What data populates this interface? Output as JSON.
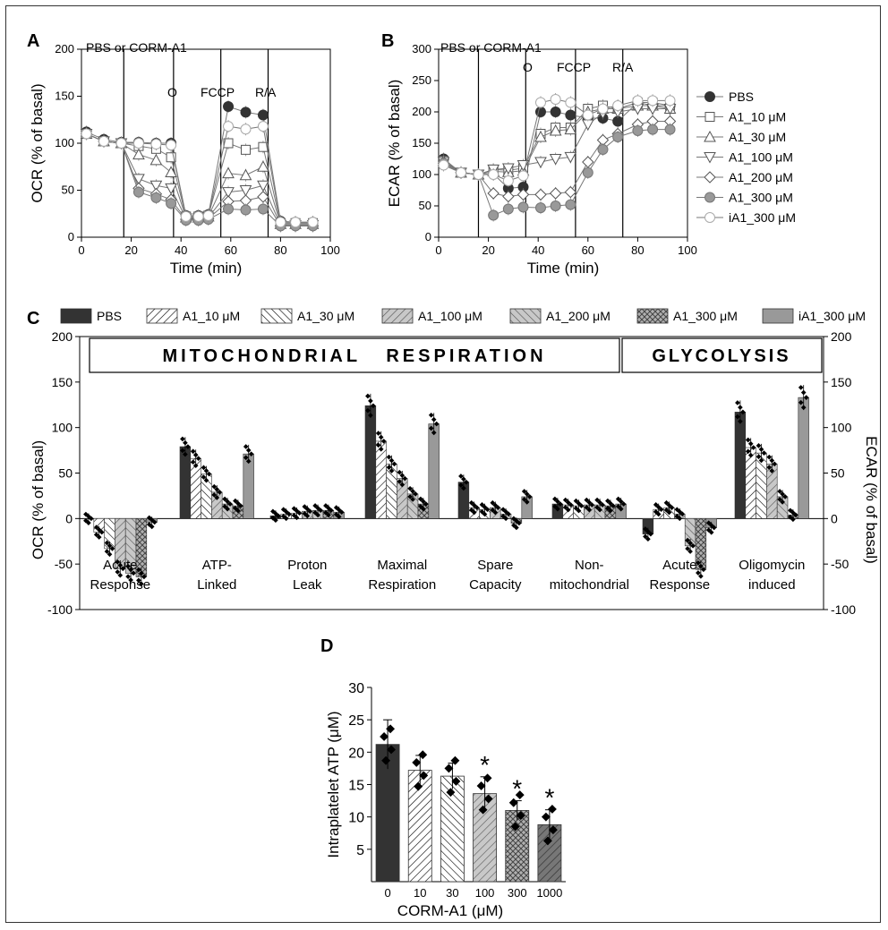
{
  "colors": {
    "dark": "#333333",
    "mid": "#999999",
    "light": "#cccccc",
    "black": "#000000",
    "white": "#ffffff"
  },
  "panel_letters": {
    "a": "A",
    "b": "B",
    "c": "C",
    "d": "D"
  },
  "injection_labels": {
    "pbs_or_corm": "PBS or CORM-A1",
    "o": "O",
    "fccp": "FCCP",
    "ra": "R/A"
  },
  "legend_ab": [
    "PBS",
    "A1_10 μM",
    "A1_30 μM",
    "A1_100 μM",
    "A1_200 μM",
    "A1_300 μM",
    "iA1_300 μM"
  ],
  "legend_c": [
    "PBS",
    "A1_10 μM",
    "A1_30 μM",
    "A1_100 μM",
    "A1_200 μM",
    "A1_300 μM",
    "iA1_300 μM"
  ],
  "banners": {
    "mito": "MITOCHONDRIAL   RESPIRATION",
    "glyco": "GLYCOLYSIS"
  },
  "asterisk": "*",
  "chart_data": [
    {
      "panel": "A",
      "type": "line",
      "xlabel": "Time (min)",
      "ylabel": "OCR (% of basal)",
      "xlim": [
        0,
        100
      ],
      "ylim": [
        0,
        200
      ],
      "xticks": [
        0,
        20,
        40,
        60,
        80,
        100
      ],
      "yticks": [
        0,
        50,
        100,
        150,
        200
      ],
      "injections": [
        17,
        37,
        56,
        75
      ],
      "x": [
        2,
        9,
        16,
        23,
        30,
        36,
        42,
        47,
        51,
        59,
        66,
        73,
        80,
        86,
        93
      ],
      "series": [
        {
          "name": "PBS",
          "marker": "filled-circle",
          "values": [
            112,
            104,
            101,
            101,
            100,
            100,
            23,
            23,
            24,
            139,
            133,
            130,
            17,
            16,
            16
          ]
        },
        {
          "name": "A1_10 μM",
          "marker": "square",
          "values": [
            110,
            102,
            100,
            97,
            94,
            85,
            22,
            22,
            23,
            100,
            93,
            96,
            15,
            15,
            15
          ]
        },
        {
          "name": "A1_30 μM",
          "marker": "triangle-up",
          "values": [
            110,
            102,
            100,
            88,
            82,
            69,
            21,
            21,
            22,
            68,
            66,
            75,
            14,
            14,
            14
          ]
        },
        {
          "name": "A1_100 μM",
          "marker": "triangle-down",
          "values": [
            110,
            102,
            100,
            62,
            55,
            52,
            20,
            20,
            21,
            48,
            50,
            55,
            13,
            13,
            13
          ]
        },
        {
          "name": "A1_200 μM",
          "marker": "diamond",
          "values": [
            110,
            102,
            100,
            52,
            46,
            40,
            19,
            19,
            20,
            38,
            39,
            43,
            12,
            12,
            12
          ]
        },
        {
          "name": "A1_300 μM",
          "marker": "gray-circle",
          "values": [
            110,
            102,
            100,
            48,
            42,
            36,
            18,
            18,
            19,
            30,
            29,
            30,
            12,
            12,
            12
          ]
        },
        {
          "name": "iA1_300 μM",
          "marker": "open-circle",
          "values": [
            110,
            102,
            100,
            100,
            99,
            98,
            22,
            22,
            23,
            118,
            115,
            118,
            16,
            16,
            16
          ]
        }
      ]
    },
    {
      "panel": "B",
      "type": "line",
      "xlabel": "Time (min)",
      "ylabel": "ECAR (% of basal)",
      "xlim": [
        0,
        100
      ],
      "ylim": [
        0,
        300
      ],
      "xticks": [
        0,
        20,
        40,
        60,
        80,
        100
      ],
      "yticks": [
        0,
        50,
        100,
        150,
        200,
        250,
        300
      ],
      "injections": [
        16,
        35,
        55,
        74
      ],
      "x": [
        2,
        9,
        16,
        22,
        28,
        34,
        41,
        47,
        53,
        60,
        66,
        72,
        80,
        86,
        93
      ],
      "series": [
        {
          "name": "PBS",
          "marker": "filled-circle",
          "values": [
            125,
            103,
            100,
            101,
            78,
            80,
            200,
            200,
            195,
            190,
            190,
            185,
            215,
            210,
            210
          ]
        },
        {
          "name": "A1_10 μM",
          "marker": "square",
          "values": [
            122,
            103,
            100,
            108,
            107,
            110,
            165,
            175,
            175,
            205,
            210,
            205,
            215,
            215,
            210
          ]
        },
        {
          "name": "A1_30 μM",
          "marker": "triangle-up",
          "values": [
            122,
            103,
            100,
            105,
            104,
            106,
            160,
            170,
            172,
            200,
            205,
            205,
            210,
            210,
            205
          ]
        },
        {
          "name": "A1_100 μM",
          "marker": "triangle-down",
          "values": [
            120,
            103,
            100,
            108,
            110,
            115,
            120,
            125,
            128,
            180,
            198,
            200,
            205,
            205,
            205
          ]
        },
        {
          "name": "A1_200 μM",
          "marker": "diamond",
          "values": [
            118,
            103,
            100,
            70,
            65,
            68,
            68,
            70,
            72,
            120,
            155,
            165,
            180,
            185,
            185
          ]
        },
        {
          "name": "A1_300 μM",
          "marker": "gray-circle",
          "values": [
            118,
            103,
            100,
            35,
            45,
            48,
            47,
            50,
            52,
            103,
            140,
            160,
            170,
            172,
            172
          ]
        },
        {
          "name": "iA1_300 μM",
          "marker": "open-circle",
          "values": [
            115,
            103,
            100,
            100,
            90,
            98,
            215,
            220,
            215,
            195,
            205,
            210,
            218,
            218,
            218
          ]
        }
      ]
    },
    {
      "panel": "C",
      "type": "bar",
      "ylabel": "OCR (% of basal)",
      "ylabel_right": "ECAR (% of basal)",
      "ylim": [
        -100,
        200
      ],
      "yticks": [
        -100,
        -50,
        0,
        50,
        100,
        150,
        200
      ],
      "ylim_right": [
        -100,
        200
      ],
      "yticks_right": [
        -100,
        -50,
        0,
        50,
        100,
        150,
        200
      ],
      "categories": [
        "Acute Response",
        "ATP-Linked",
        "Proton Leak",
        "Maximal Respiration",
        "Spare Capacity",
        "Non-mitochondrial",
        "Acute Response",
        "Oligomycin-induced"
      ],
      "category_label_lines": [
        [
          "Acute",
          "Response"
        ],
        [
          "ATP-",
          "Linked"
        ],
        [
          "Proton",
          "Leak"
        ],
        [
          "Maximal",
          "Respiration"
        ],
        [
          "Spare",
          "Capacity"
        ],
        [
          "Non-",
          "mitochondrial"
        ],
        [
          "Acute",
          "Response"
        ],
        [
          "Oligomycin",
          "induced"
        ]
      ],
      "series": [
        {
          "name": "PBS",
          "values": [
            0,
            79,
            3,
            124,
            40,
            16,
            -17,
            117
          ]
        },
        {
          "name": "A1_10 μM",
          "values": [
            -15,
            66,
            5,
            85,
            12,
            15,
            10,
            78
          ]
        },
        {
          "name": "A1_30 μM",
          "values": [
            -33,
            49,
            6,
            60,
            10,
            14,
            12,
            72
          ]
        },
        {
          "name": "A1_100 μM",
          "values": [
            -55,
            29,
            8,
            44,
            12,
            15,
            5,
            60
          ]
        },
        {
          "name": "A1_200 μM",
          "values": [
            -60,
            16,
            9,
            27,
            5,
            15,
            -30,
            24
          ]
        },
        {
          "name": "A1_300 μM",
          "values": [
            -64,
            14,
            9,
            16,
            -5,
            14,
            -56,
            4
          ]
        },
        {
          "name": "iA1_300 μM",
          "values": [
            -4,
            71,
            7,
            104,
            24,
            16,
            -10,
            133
          ]
        }
      ]
    },
    {
      "panel": "D",
      "type": "bar",
      "xlabel": "CORM-A1 (μM)",
      "ylabel": "Intraplatelet ATP (μM)",
      "ylim": [
        0,
        30
      ],
      "yticks": [
        5,
        10,
        15,
        20,
        25,
        30
      ],
      "categories": [
        "0",
        "10",
        "30",
        "100",
        "300",
        "1000"
      ],
      "values": [
        21.2,
        17.2,
        16.3,
        13.6,
        11.0,
        8.8
      ],
      "errors": [
        3.8,
        2.3,
        2.0,
        2.6,
        1.5,
        2.3
      ],
      "significant": [
        false,
        false,
        false,
        true,
        true,
        true
      ]
    }
  ]
}
